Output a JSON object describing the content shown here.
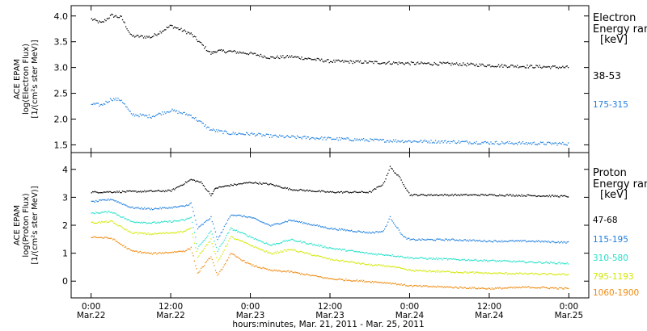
{
  "chart_data": [
    {
      "type": "scatter",
      "panel": "electron",
      "ylabel_lines": [
        "ACE EPAM",
        "log(Electron Flux)",
        "[1/(cm²s ster MeV)]"
      ],
      "yticks": [
        "1.5",
        "2.0",
        "2.5",
        "3.0",
        "3.5",
        "4.0"
      ],
      "ylim": [
        1.35,
        4.2
      ],
      "legend_title_lines": [
        "Electron",
        "Energy ranges",
        "[keV]"
      ],
      "series": [
        {
          "name": "38-53",
          "color": "#000000",
          "x": [
            0,
            3,
            6,
            9,
            12,
            18,
            24,
            30,
            36,
            37.5,
            42,
            48,
            54,
            60,
            72,
            84,
            96,
            108,
            120,
            132,
            144
          ],
          "values": [
            3.95,
            3.87,
            4.02,
            3.98,
            3.62,
            3.6,
            3.82,
            3.66,
            3.28,
            3.33,
            3.32,
            3.28,
            3.2,
            3.22,
            3.13,
            3.11,
            3.09,
            3.08,
            3.05,
            3.03,
            3.01
          ]
        },
        {
          "name": "175-315",
          "color": "#1f7fdf",
          "x": [
            0,
            3,
            6,
            9,
            12,
            18,
            24,
            30,
            36,
            42,
            48,
            54,
            60,
            72,
            84,
            96,
            108,
            120,
            132,
            144
          ],
          "values": [
            2.3,
            2.28,
            2.4,
            2.38,
            2.1,
            2.06,
            2.18,
            2.08,
            1.8,
            1.73,
            1.72,
            1.68,
            1.66,
            1.63,
            1.6,
            1.58,
            1.57,
            1.55,
            1.54,
            1.53
          ]
        }
      ]
    },
    {
      "type": "scatter",
      "panel": "proton",
      "ylabel_lines": [
        "ACE EPAM",
        "log(Proton Flux)",
        "[1/(cm²s ster MeV)]"
      ],
      "yticks": [
        "0",
        "1",
        "2",
        "3",
        "4"
      ],
      "ylim": [
        -0.6,
        4.6
      ],
      "legend_title_lines": [
        "Proton",
        "Energy ranges",
        "[keV]"
      ],
      "series": [
        {
          "name": "47-68",
          "color": "#000000",
          "x": [
            0,
            12,
            24,
            30,
            33,
            36,
            37.5,
            42,
            48,
            54,
            60,
            72,
            84,
            88,
            90,
            93,
            96,
            108,
            120,
            132,
            144
          ],
          "values": [
            3.2,
            3.22,
            3.25,
            3.65,
            3.55,
            3.1,
            3.35,
            3.45,
            3.55,
            3.48,
            3.3,
            3.2,
            3.2,
            3.5,
            4.1,
            3.7,
            3.1,
            3.1,
            3.1,
            3.08,
            3.05
          ]
        },
        {
          "name": "115-195",
          "color": "#1f7fdf",
          "x": [
            0,
            6,
            12,
            18,
            24,
            28,
            30,
            32,
            36,
            38,
            42,
            48,
            54,
            60,
            72,
            84,
            88,
            90,
            94,
            96,
            108,
            120,
            132,
            144
          ],
          "values": [
            2.85,
            2.95,
            2.65,
            2.6,
            2.65,
            2.7,
            2.8,
            1.9,
            2.3,
            1.5,
            2.4,
            2.3,
            2.0,
            2.2,
            1.9,
            1.75,
            1.8,
            2.3,
            1.6,
            1.5,
            1.5,
            1.45,
            1.45,
            1.4
          ]
        },
        {
          "name": "310-580",
          "color": "#22e0c8",
          "x": [
            0,
            6,
            12,
            18,
            24,
            28,
            30,
            32,
            36,
            38,
            42,
            48,
            54,
            60,
            72,
            84,
            90,
            96,
            108,
            120,
            132,
            144
          ],
          "values": [
            2.45,
            2.5,
            2.15,
            2.1,
            2.15,
            2.2,
            2.3,
            1.2,
            1.8,
            1.1,
            1.9,
            1.6,
            1.3,
            1.5,
            1.2,
            1.0,
            0.95,
            0.85,
            0.8,
            0.75,
            0.7,
            0.65
          ]
        },
        {
          "name": "795-1193",
          "color": "#d2e800",
          "x": [
            0,
            6,
            12,
            18,
            24,
            28,
            30,
            32,
            36,
            38,
            42,
            48,
            54,
            60,
            72,
            84,
            90,
            96,
            108,
            120,
            132,
            144
          ],
          "values": [
            2.1,
            2.15,
            1.75,
            1.7,
            1.75,
            1.8,
            1.9,
            0.9,
            1.5,
            0.7,
            1.6,
            1.3,
            1.0,
            1.15,
            0.8,
            0.6,
            0.55,
            0.4,
            0.35,
            0.3,
            0.28,
            0.25
          ]
        },
        {
          "name": "1060-1900",
          "color": "#f08a10",
          "x": [
            0,
            6,
            12,
            18,
            24,
            28,
            30,
            32,
            36,
            38,
            42,
            48,
            54,
            60,
            72,
            84,
            90,
            96,
            108,
            120,
            132,
            144
          ],
          "values": [
            1.6,
            1.55,
            1.1,
            1.0,
            1.05,
            1.1,
            1.2,
            0.3,
            0.9,
            0.2,
            1.0,
            0.6,
            0.4,
            0.35,
            0.1,
            0.0,
            -0.05,
            -0.15,
            -0.2,
            -0.25,
            -0.2,
            -0.25
          ]
        }
      ]
    }
  ],
  "x_axis": {
    "xlim": [
      -6,
      150
    ],
    "ticks": [
      {
        "x": 0,
        "time": "0:00",
        "date": "Mar.22"
      },
      {
        "x": 24,
        "time": "12:00",
        "date": "Mar.22"
      },
      {
        "x": 48,
        "time": "0:00",
        "date": "Mar.23"
      },
      {
        "x": 72,
        "time": "12:00",
        "date": "Mar.23"
      },
      {
        "x": 96,
        "time": "0:00",
        "date": "Mar.24"
      },
      {
        "x": 120,
        "time": "12:00",
        "date": "Mar.24"
      },
      {
        "x": 144,
        "time": "0:00",
        "date": "Mar.25"
      }
    ],
    "title": "hours:minutes, Mar. 21, 2011 - Mar. 25, 2011"
  }
}
